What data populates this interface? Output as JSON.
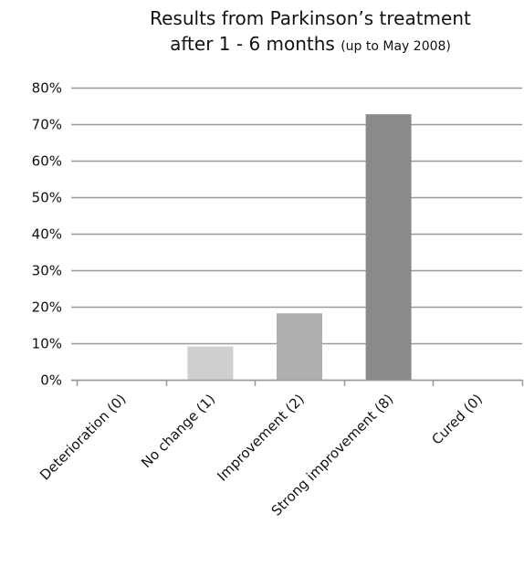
{
  "chart_data": {
    "type": "bar",
    "title_line1": "Results from Parkinson’s treatment",
    "title_line2": "after 1 - 6 months",
    "title_note": "(up to May 2008)",
    "categories": [
      "Deterioration (0)",
      "No change (1)",
      "Improvement (2)",
      "Strong improvement (8)",
      "Cured (0)"
    ],
    "values": [
      0,
      9.1,
      18.2,
      72.7,
      0
    ],
    "bar_colors": [
      "#cfcfcf",
      "#cfcfcf",
      "#afafaf",
      "#8a8a8a",
      "#8a8a8a"
    ],
    "ylim": [
      0,
      80
    ],
    "ytick_step": 10,
    "ytick_suffix": "%",
    "grid": true,
    "grid_color": "#9a9a9a",
    "xlabel": "",
    "ylabel": ""
  }
}
